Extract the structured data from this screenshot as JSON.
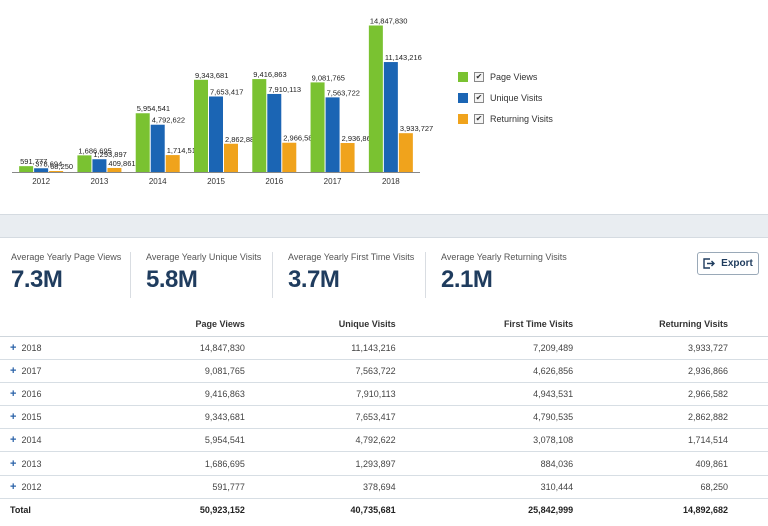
{
  "chart_data": {
    "type": "bar",
    "categories": [
      "2012",
      "2013",
      "2014",
      "2015",
      "2016",
      "2017",
      "2018"
    ],
    "series": [
      {
        "name": "Page Views",
        "color": "#7ac231",
        "values": [
          591777,
          1686695,
          5954541,
          9343681,
          9416863,
          9081765,
          14847830
        ]
      },
      {
        "name": "Unique Visits",
        "color": "#1b65b4",
        "values": [
          378694,
          1293897,
          4792622,
          7653417,
          7910113,
          7563722,
          11143216
        ]
      },
      {
        "name": "Returning Visits",
        "color": "#f0a31c",
        "values": [
          68250,
          409861,
          1714514,
          2862882,
          2966582,
          2936866,
          3933727
        ]
      }
    ],
    "data_labels": [
      [
        "591,777",
        "1,686,695",
        "5,954,541",
        "9,343,681",
        "9,416,863",
        "9,081,765",
        "14,847,830"
      ],
      [
        "378,694",
        "1,293,897",
        "4,792,622",
        "7,653,417",
        "7,910,113",
        "7,563,722",
        "11,143,216"
      ],
      [
        "68,250",
        "409,861",
        "1,714,514",
        "2,862,882",
        "2,966,582",
        "2,936,866",
        "3,933,727"
      ]
    ],
    "ylim": [
      0,
      15000000
    ],
    "legend_position": "right",
    "grid": false
  },
  "kpis": [
    {
      "label": "Average Yearly Page Views",
      "value": "7.3M"
    },
    {
      "label": "Average Yearly Unique Visits",
      "value": "5.8M"
    },
    {
      "label": "Average Yearly First Time Visits",
      "value": "3.7M"
    },
    {
      "label": "Average Yearly Returning Visits",
      "value": "2.1M"
    }
  ],
  "export_label": "Export",
  "table": {
    "columns": [
      "",
      "Page Views",
      "Unique Visits",
      "First Time Visits",
      "Returning Visits"
    ],
    "rows": [
      {
        "year": "2018",
        "page_views": "14,847,830",
        "unique_visits": "11,143,216",
        "first_time": "7,209,489",
        "returning": "3,933,727"
      },
      {
        "year": "2017",
        "page_views": "9,081,765",
        "unique_visits": "7,563,722",
        "first_time": "4,626,856",
        "returning": "2,936,866"
      },
      {
        "year": "2016",
        "page_views": "9,416,863",
        "unique_visits": "7,910,113",
        "first_time": "4,943,531",
        "returning": "2,966,582"
      },
      {
        "year": "2015",
        "page_views": "9,343,681",
        "unique_visits": "7,653,417",
        "first_time": "4,790,535",
        "returning": "2,862,882"
      },
      {
        "year": "2014",
        "page_views": "5,954,541",
        "unique_visits": "4,792,622",
        "first_time": "3,078,108",
        "returning": "1,714,514"
      },
      {
        "year": "2013",
        "page_views": "1,686,695",
        "unique_visits": "1,293,897",
        "first_time": "884,036",
        "returning": "409,861"
      },
      {
        "year": "2012",
        "page_views": "591,777",
        "unique_visits": "378,694",
        "first_time": "310,444",
        "returning": "68,250"
      }
    ],
    "total": {
      "label": "Total",
      "page_views": "50,923,152",
      "unique_visits": "40,735,681",
      "first_time": "25,842,999",
      "returning": "14,892,682"
    }
  }
}
